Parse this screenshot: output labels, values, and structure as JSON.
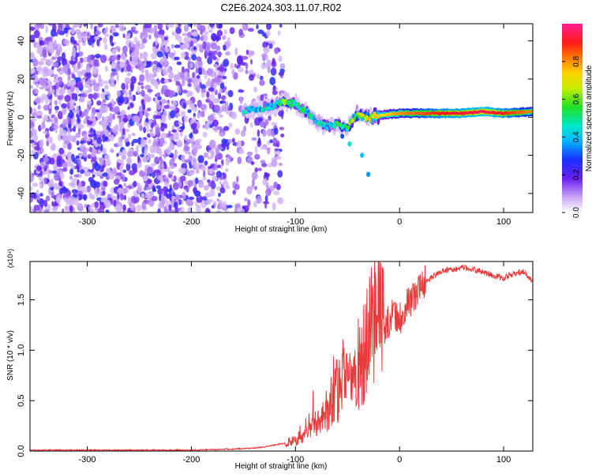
{
  "figure": {
    "title": "C2E6.2024.303.11.07.R02"
  },
  "chart_data": [
    {
      "type": "heatmap",
      "xlabel": "Height of straight line (km)",
      "ylabel": "Frequency (Hz)",
      "xlim": [
        -355,
        128
      ],
      "ylim": [
        -50,
        49
      ],
      "xticks": [
        -300,
        -200,
        -100,
        0,
        100
      ],
      "yticks": [
        -40,
        -20,
        0,
        20,
        40
      ],
      "grid": false,
      "colorbar": {
        "label": "Normalized spectral amplitude",
        "range": [
          0,
          1
        ],
        "ticks": [
          0.0,
          0.2,
          0.4,
          0.6,
          0.8
        ],
        "tick_labels": [
          "0.0",
          "0.2",
          "0.4",
          "0.6",
          "0.8"
        ],
        "colormap": "rainbow (white–purple–blue–cyan–green–yellow–orange–red–magenta)"
      },
      "noise_region_x": [
        -355,
        -112
      ],
      "ridge": [
        {
          "x": -150,
          "y": 3,
          "amp": 0.4
        },
        {
          "x": -140,
          "y": 4,
          "amp": 0.35
        },
        {
          "x": -120,
          "y": 6,
          "amp": 0.45
        },
        {
          "x": -110,
          "y": 8,
          "amp": 0.55
        },
        {
          "x": -100,
          "y": 7,
          "amp": 0.5
        },
        {
          "x": -90,
          "y": 3,
          "amp": 0.45
        },
        {
          "x": -80,
          "y": -2,
          "amp": 0.4
        },
        {
          "x": -70,
          "y": -5,
          "amp": 0.45
        },
        {
          "x": -60,
          "y": -4,
          "amp": 0.5
        },
        {
          "x": -50,
          "y": -6,
          "amp": 0.55
        },
        {
          "x": -40,
          "y": 2,
          "amp": 0.6
        },
        {
          "x": -30,
          "y": 0,
          "amp": 0.65
        },
        {
          "x": -20,
          "y": 1,
          "amp": 0.7
        },
        {
          "x": 0,
          "y": 2,
          "amp": 0.8
        },
        {
          "x": 20,
          "y": 2,
          "amp": 0.85
        },
        {
          "x": 40,
          "y": 2,
          "amp": 0.9
        },
        {
          "x": 60,
          "y": 2,
          "amp": 0.92
        },
        {
          "x": 80,
          "y": 3,
          "amp": 0.95
        },
        {
          "x": 100,
          "y": 2,
          "amp": 0.9
        },
        {
          "x": 128,
          "y": 3,
          "amp": 0.8
        }
      ]
    },
    {
      "type": "line",
      "xlabel": "Height of straight line (km)",
      "ylabel": "SNR (10 * v/v)",
      "y_multiplier": "(x10⁴)",
      "xlim": [
        -355,
        128
      ],
      "ylim": [
        0,
        1.88
      ],
      "xticks": [
        -300,
        -200,
        -100,
        0,
        100
      ],
      "yticks": [
        0.0,
        0.5,
        1.0,
        1.5
      ],
      "ytick_labels": [
        "0.0",
        "0.5",
        "1.0",
        "1.5"
      ],
      "grid": false,
      "color": "#e83a3a",
      "series": [
        {
          "x": [
            -355,
            -300,
            -250,
            -200,
            -160,
            -140,
            -130,
            -120,
            -110,
            -100,
            -95,
            -90,
            -85,
            -80,
            -75,
            -70,
            -65,
            -60,
            -55,
            -50,
            -45,
            -40,
            -35,
            -30,
            -25,
            -20,
            -15,
            -10,
            -5,
            0,
            5,
            10,
            15,
            20,
            25,
            30,
            40,
            50,
            60,
            70,
            80,
            90,
            100,
            110,
            120,
            128
          ],
          "y": [
            0.01,
            0.01,
            0.01,
            0.01,
            0.02,
            0.03,
            0.04,
            0.06,
            0.08,
            0.1,
            0.14,
            0.2,
            0.28,
            0.25,
            0.35,
            0.42,
            0.5,
            0.6,
            0.7,
            0.62,
            0.72,
            0.85,
            0.95,
            1.1,
            1.25,
            1.4,
            1.2,
            1.3,
            1.35,
            1.3,
            1.4,
            1.5,
            1.55,
            1.62,
            1.68,
            1.72,
            1.78,
            1.8,
            1.82,
            1.8,
            1.78,
            1.74,
            1.72,
            1.76,
            1.78,
            1.68
          ]
        }
      ]
    }
  ]
}
